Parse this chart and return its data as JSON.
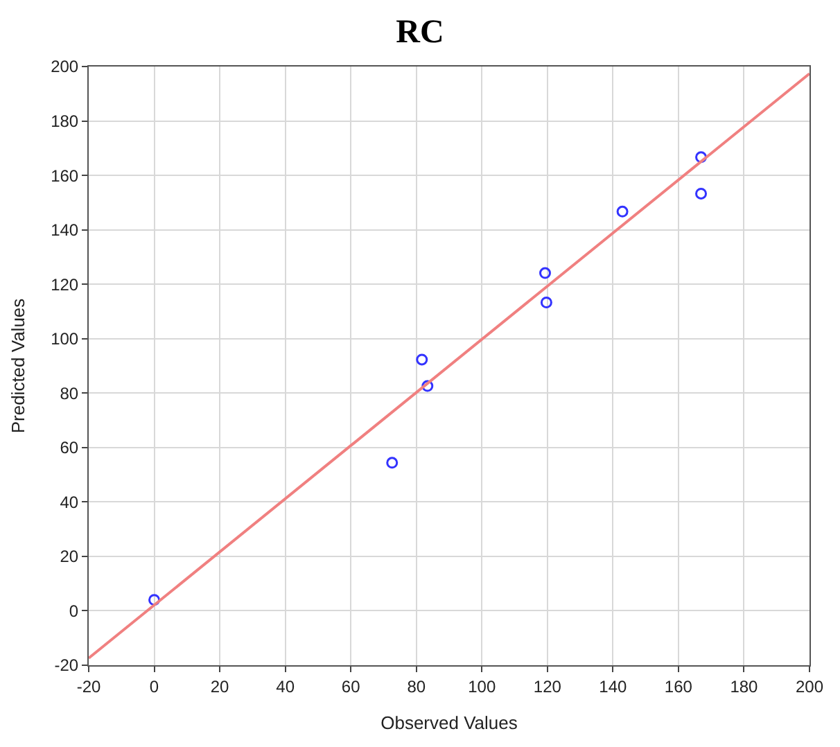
{
  "chart_data": {
    "type": "scatter",
    "title": "RC",
    "xlabel": "Observed Values",
    "ylabel": "Predicted Values",
    "xlim": [
      -20,
      200
    ],
    "ylim": [
      -20,
      200
    ],
    "xticks": [
      -20,
      0,
      20,
      40,
      60,
      80,
      100,
      120,
      140,
      160,
      180,
      200
    ],
    "yticks": [
      -20,
      0,
      20,
      40,
      60,
      80,
      100,
      120,
      140,
      160,
      180,
      200
    ],
    "grid": true,
    "series": [
      {
        "marker": "circle",
        "color": "#3333ff",
        "x": [
          0,
          72.6,
          81.7,
          83.4,
          119.3,
          119.7,
          142.9,
          166.9,
          166.9
        ],
        "values": [
          4,
          54.4,
          92.3,
          82.6,
          124.1,
          113.3,
          146.7,
          166.7,
          153.3
        ]
      },
      {
        "type": "line",
        "color": "#f08080",
        "x": [
          -20,
          200
        ],
        "values": [
          -17.4,
          197.4
        ],
        "marker": "none",
        "line_style": "solid"
      }
    ]
  }
}
